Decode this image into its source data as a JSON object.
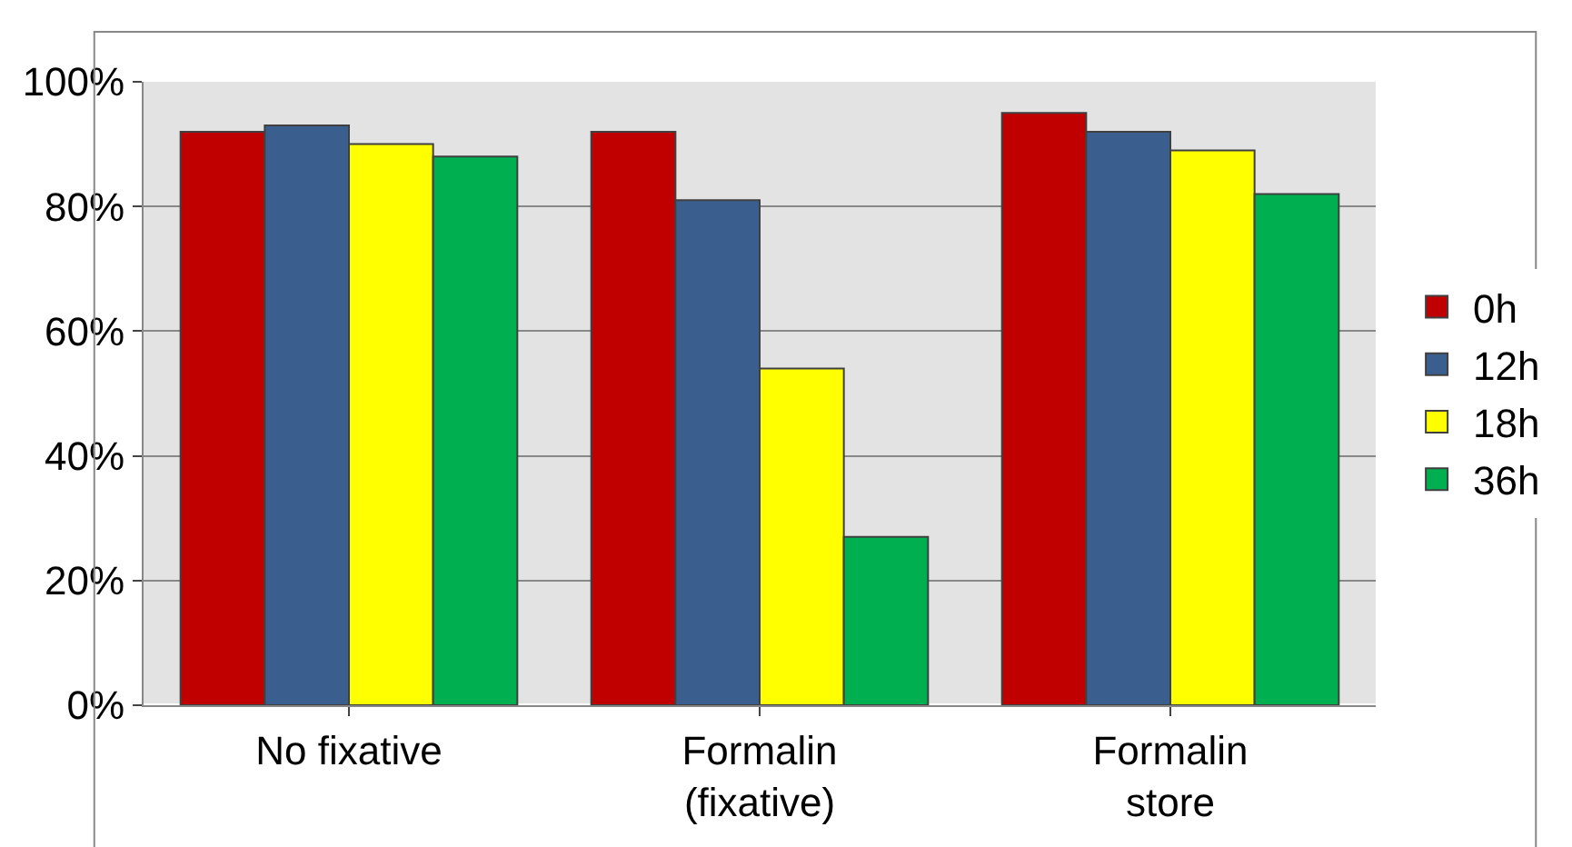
{
  "chart_data": {
    "type": "bar",
    "categories": [
      "No fixative",
      "Formalin\n(fixative)",
      "Formalin\nstore"
    ],
    "series": [
      {
        "name": "0h",
        "color": "#c00000",
        "values": [
          92,
          92,
          95
        ]
      },
      {
        "name": "12h",
        "color": "#3a5f8f",
        "values": [
          93,
          81,
          92
        ]
      },
      {
        "name": "18h",
        "color": "#ffff00",
        "values": [
          90,
          54,
          89
        ]
      },
      {
        "name": "36h",
        "color": "#00b050",
        "values": [
          88,
          27,
          82
        ]
      }
    ],
    "ylim": [
      0,
      100
    ],
    "yticks": [
      {
        "value": 0,
        "label": "0%"
      },
      {
        "value": 20,
        "label": "20%"
      },
      {
        "value": 40,
        "label": "40%"
      },
      {
        "value": 60,
        "label": "60%"
      },
      {
        "value": 80,
        "label": "80%"
      },
      {
        "value": 100,
        "label": "100%"
      }
    ],
    "grid": "y",
    "legend": "right"
  }
}
